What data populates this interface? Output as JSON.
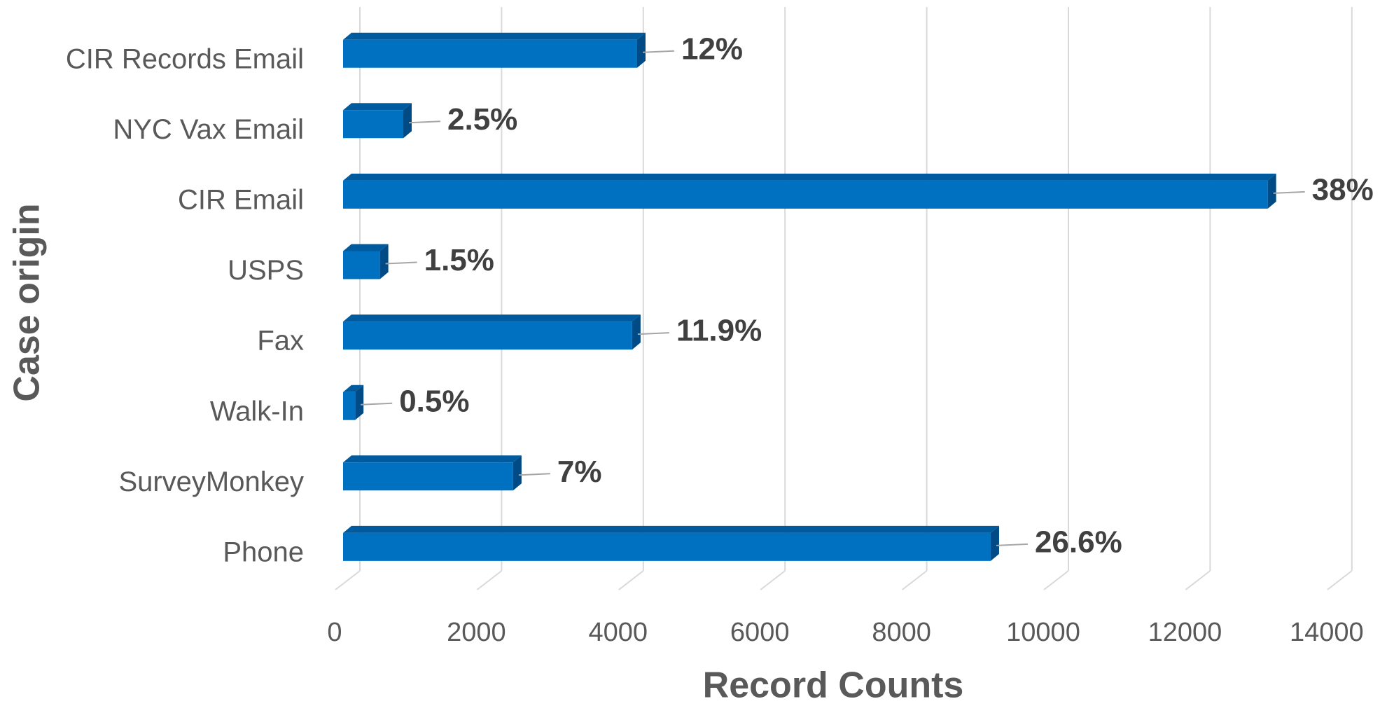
{
  "chart_data": {
    "type": "bar",
    "orientation": "horizontal",
    "x_label": "Record Counts",
    "y_label": "Case origin",
    "categories": [
      "CIR Records Email",
      "NYC Vax Email",
      "CIR Email",
      "USPS",
      "Fax",
      "Walk-In",
      "SurveyMonkey",
      "Phone"
    ],
    "values": [
      4150,
      850,
      13050,
      520,
      4080,
      170,
      2400,
      9140
    ],
    "share_labels": [
      "12%",
      "2.5%",
      "38%",
      "1.5%",
      "11.9%",
      "0.5%",
      "7%",
      "26.6%"
    ],
    "color": "#0070c0",
    "xlim": [
      0,
      14000
    ],
    "xticks": [
      0,
      2000,
      4000,
      6000,
      8000,
      10000,
      12000,
      14000
    ],
    "grid": true
  }
}
